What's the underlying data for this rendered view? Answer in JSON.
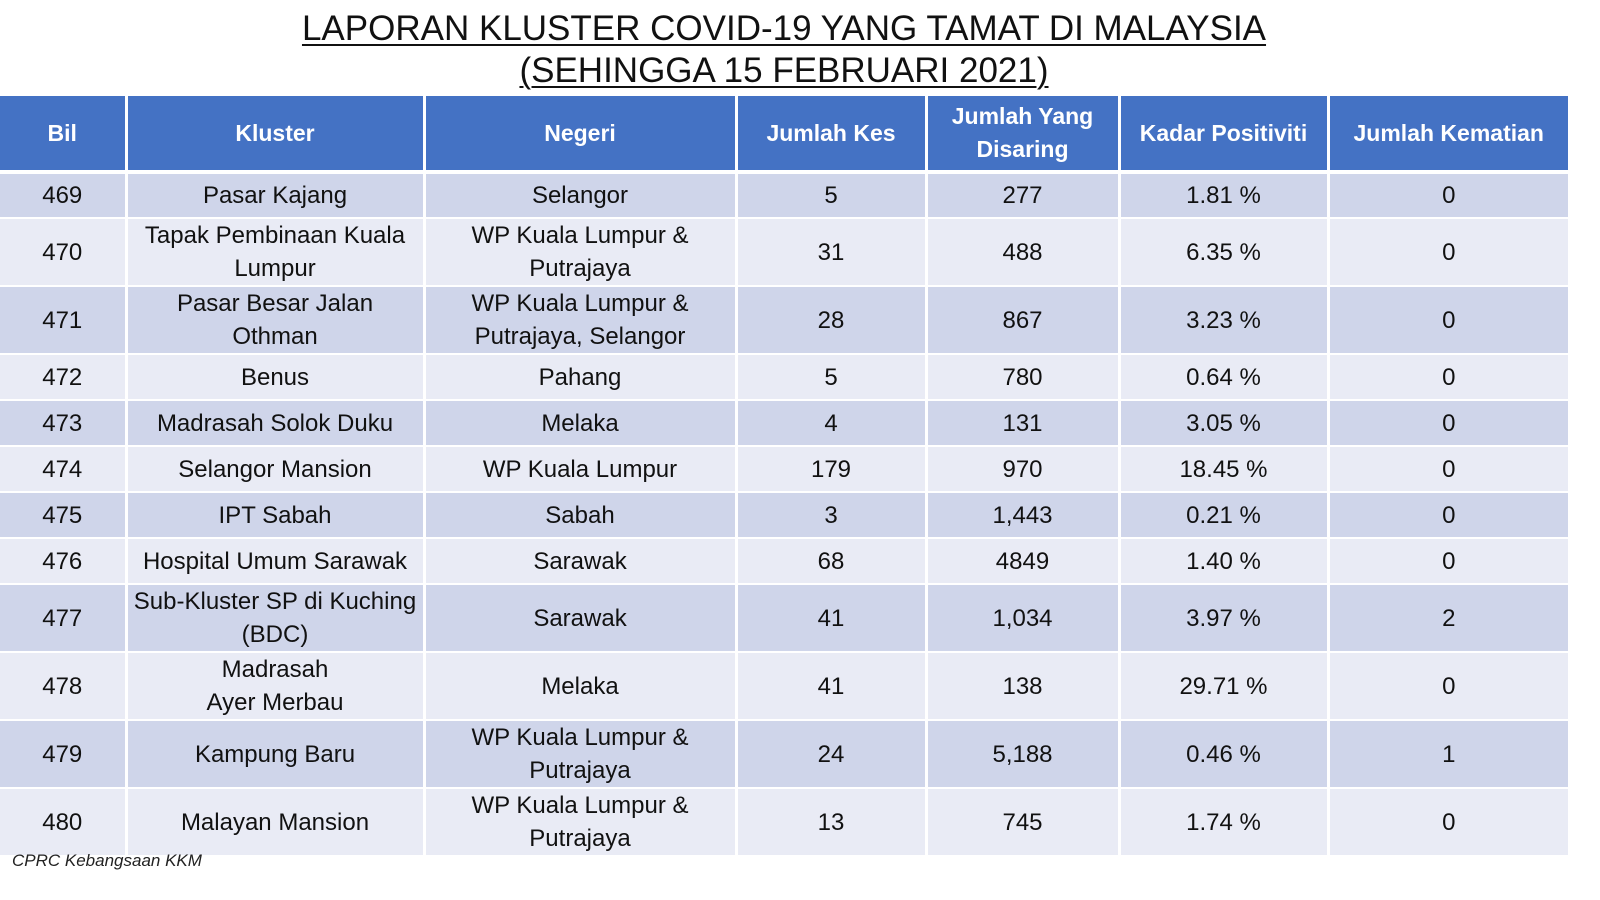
{
  "title": {
    "line1": "LAPORAN KLUSTER COVID-19 YANG TAMAT DI MALAYSIA",
    "line2": "(SEHINGGA 15 FEBRUARI 2021)"
  },
  "table": {
    "headers": {
      "bil": "Bil",
      "kluster": "Kluster",
      "negeri": "Negeri",
      "jumlah_kes": "Jumlah Kes",
      "jumlah_disaring_1": "Jumlah Yang",
      "jumlah_disaring_2": "Disaring",
      "kadar_positiviti": "Kadar Positiviti",
      "jumlah_kematian": "Jumlah Kematian"
    },
    "rows": [
      {
        "bil": "469",
        "kluster": [
          "Pasar Kajang"
        ],
        "negeri": [
          "Selangor"
        ],
        "kes": "5",
        "disaring": "277",
        "positiviti": "1.81 %",
        "kematian": "0"
      },
      {
        "bil": "470",
        "kluster": [
          "Tapak Pembinaan Kuala",
          "Lumpur"
        ],
        "negeri": [
          "WP Kuala Lumpur &",
          "Putrajaya"
        ],
        "kes": "31",
        "disaring": "488",
        "positiviti": "6.35 %",
        "kematian": "0"
      },
      {
        "bil": "471",
        "kluster": [
          "Pasar Besar Jalan Othman"
        ],
        "negeri": [
          "WP Kuala Lumpur &",
          "Putrajaya,  Selangor"
        ],
        "kes": "28",
        "disaring": "867",
        "positiviti": "3.23 %",
        "kematian": "0"
      },
      {
        "bil": "472",
        "kluster": [
          "Benus"
        ],
        "negeri": [
          "Pahang"
        ],
        "kes": "5",
        "disaring": "780",
        "positiviti": "0.64 %",
        "kematian": "0"
      },
      {
        "bil": "473",
        "kluster": [
          "Madrasah Solok Duku"
        ],
        "negeri": [
          "Melaka"
        ],
        "kes": "4",
        "disaring": "131",
        "positiviti": "3.05 %",
        "kematian": "0"
      },
      {
        "bil": "474",
        "kluster": [
          "Selangor Mansion"
        ],
        "negeri": [
          "WP Kuala Lumpur"
        ],
        "kes": "179",
        "disaring": "970",
        "positiviti": "18.45 %",
        "kematian": "0"
      },
      {
        "bil": "475",
        "kluster": [
          "IPT Sabah"
        ],
        "negeri": [
          "Sabah"
        ],
        "kes": "3",
        "disaring": "1,443",
        "positiviti": "0.21 %",
        "kematian": "0"
      },
      {
        "bil": "476",
        "kluster": [
          "Hospital Umum Sarawak"
        ],
        "negeri": [
          "Sarawak"
        ],
        "kes": "68",
        "disaring": "4849",
        "positiviti": "1.40 %",
        "kematian": "0"
      },
      {
        "bil": "477",
        "kluster": [
          "Sub-Kluster SP di Kuching",
          "(BDC)"
        ],
        "negeri": [
          "Sarawak"
        ],
        "kes": "41",
        "disaring": "1,034",
        "positiviti": "3.97 %",
        "kematian": "2"
      },
      {
        "bil": "478",
        "kluster": [
          "Madrasah",
          "Ayer Merbau"
        ],
        "negeri": [
          "Melaka"
        ],
        "kes": "41",
        "disaring": "138",
        "positiviti": "29.71 %",
        "kematian": "0"
      },
      {
        "bil": "479",
        "kluster": [
          "Kampung Baru"
        ],
        "negeri": [
          "WP Kuala Lumpur &",
          "Putrajaya"
        ],
        "kes": "24",
        "disaring": "5,188",
        "positiviti": "0.46 %",
        "kematian": "1"
      },
      {
        "bil": "480",
        "kluster": [
          "Malayan Mansion"
        ],
        "negeri": [
          "WP Kuala Lumpur &",
          "Putrajaya"
        ],
        "kes": "13",
        "disaring": "745",
        "positiviti": "1.74 %",
        "kematian": "0"
      }
    ]
  },
  "footer": "CPRC Kebangsaan KKM"
}
